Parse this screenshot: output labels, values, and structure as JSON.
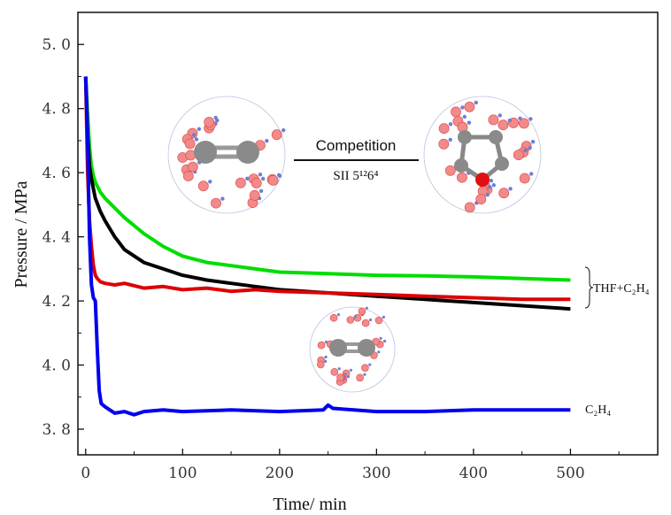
{
  "chart_data": {
    "type": "line",
    "xlabel": "Time/ min",
    "ylabel": "Pressure / MPa",
    "xlim": [
      -8,
      590
    ],
    "ylim": [
      3.72,
      5.1
    ],
    "xticks": [
      0,
      100,
      200,
      300,
      400,
      500
    ],
    "xtick_labels": [
      "0",
      "100",
      "200",
      "300",
      "400",
      "500"
    ],
    "yticks": [
      3.8,
      4.0,
      4.2,
      4.4,
      4.6,
      4.8,
      5.0
    ],
    "ytick_labels": [
      "3. 8",
      "4. 0",
      "4. 2",
      "4. 4",
      "4. 6",
      "4. 8",
      "5. 0"
    ],
    "grid": false,
    "series": [
      {
        "color": "#00dd00",
        "x": [
          0,
          2,
          4,
          6,
          8,
          10,
          15,
          20,
          30,
          40,
          60,
          80,
          100,
          125,
          150,
          175,
          200,
          250,
          300,
          350,
          400,
          450,
          500
        ],
        "y": [
          4.9,
          4.78,
          4.68,
          4.62,
          4.59,
          4.57,
          4.54,
          4.52,
          4.49,
          4.46,
          4.41,
          4.37,
          4.34,
          4.32,
          4.31,
          4.3,
          4.29,
          4.285,
          4.28,
          4.278,
          4.275,
          4.27,
          4.265
        ]
      },
      {
        "color": "#000000",
        "x": [
          0,
          2,
          4,
          6,
          8,
          10,
          15,
          20,
          30,
          40,
          60,
          80,
          100,
          125,
          150,
          175,
          200,
          250,
          300,
          350,
          400,
          450,
          500
        ],
        "y": [
          4.9,
          4.72,
          4.62,
          4.58,
          4.55,
          4.52,
          4.48,
          4.45,
          4.4,
          4.36,
          4.32,
          4.3,
          4.28,
          4.265,
          4.255,
          4.245,
          4.235,
          4.225,
          4.215,
          4.205,
          4.195,
          4.185,
          4.175
        ]
      },
      {
        "color": "#dd0000",
        "x": [
          0,
          2,
          4,
          6,
          8,
          10,
          12,
          15,
          20,
          30,
          40,
          60,
          80,
          100,
          125,
          150,
          175,
          200,
          250,
          300,
          350,
          400,
          450,
          500
        ],
        "y": [
          4.9,
          4.6,
          4.45,
          4.37,
          4.31,
          4.28,
          4.27,
          4.26,
          4.255,
          4.25,
          4.255,
          4.24,
          4.245,
          4.235,
          4.24,
          4.23,
          4.235,
          4.23,
          4.225,
          4.22,
          4.215,
          4.21,
          4.205,
          4.205
        ]
      },
      {
        "color": "#0000ee",
        "x": [
          0,
          2,
          4,
          6,
          8,
          10,
          12,
          14,
          16,
          20,
          25,
          30,
          40,
          50,
          60,
          80,
          100,
          150,
          200,
          245,
          250,
          255,
          300,
          350,
          400,
          450,
          500
        ],
        "y": [
          4.9,
          4.7,
          4.4,
          4.25,
          4.21,
          4.2,
          4.05,
          3.92,
          3.88,
          3.87,
          3.86,
          3.85,
          3.855,
          3.845,
          3.855,
          3.86,
          3.855,
          3.86,
          3.855,
          3.86,
          3.875,
          3.865,
          3.855,
          3.855,
          3.86,
          3.86,
          3.86
        ]
      }
    ],
    "annotations": {
      "thf_label": "THF+C₂H₄",
      "c2h4_label": "C₂H₄",
      "competition": "Competition",
      "cage": "SII 5¹²6⁴"
    }
  }
}
